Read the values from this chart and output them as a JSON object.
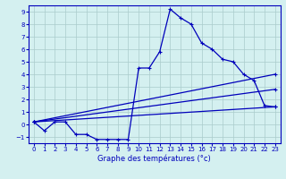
{
  "xlabel": "Graphe des températures (°c)",
  "hours": [
    0,
    1,
    2,
    3,
    4,
    5,
    6,
    7,
    8,
    9,
    10,
    11,
    12,
    13,
    14,
    15,
    16,
    17,
    18,
    19,
    20,
    21,
    22,
    23
  ],
  "curve_main": [
    0.2,
    -0.5,
    0.2,
    0.2,
    -0.8,
    -0.8,
    -1.2,
    -1.2,
    -1.2,
    -1.2,
    4.5,
    4.5,
    5.8,
    9.2,
    8.5,
    8.0,
    6.5,
    6.0,
    5.2,
    5.0,
    4.0,
    3.5,
    1.5,
    1.4
  ],
  "trend1_x": [
    0,
    23
  ],
  "trend1_y": [
    0.2,
    1.4
  ],
  "trend2_x": [
    0,
    23
  ],
  "trend2_y": [
    0.2,
    2.8
  ],
  "trend3_x": [
    0,
    23
  ],
  "trend3_y": [
    0.2,
    4.0
  ],
  "line_color": "#0000bb",
  "bg_color": "#d4f0f0",
  "grid_color": "#aacccc",
  "xlim": [
    -0.5,
    23.5
  ],
  "ylim": [
    -1.5,
    9.5
  ],
  "yticks": [
    -1,
    0,
    1,
    2,
    3,
    4,
    5,
    6,
    7,
    8,
    9
  ],
  "xticks": [
    0,
    1,
    2,
    3,
    4,
    5,
    6,
    7,
    8,
    9,
    10,
    11,
    12,
    13,
    14,
    15,
    16,
    17,
    18,
    19,
    20,
    21,
    22,
    23
  ],
  "tick_labelsize": 5,
  "xlabel_fontsize": 6,
  "linewidth": 0.9,
  "markersize": 2.5,
  "figsize": [
    3.2,
    2.0
  ],
  "dpi": 100
}
